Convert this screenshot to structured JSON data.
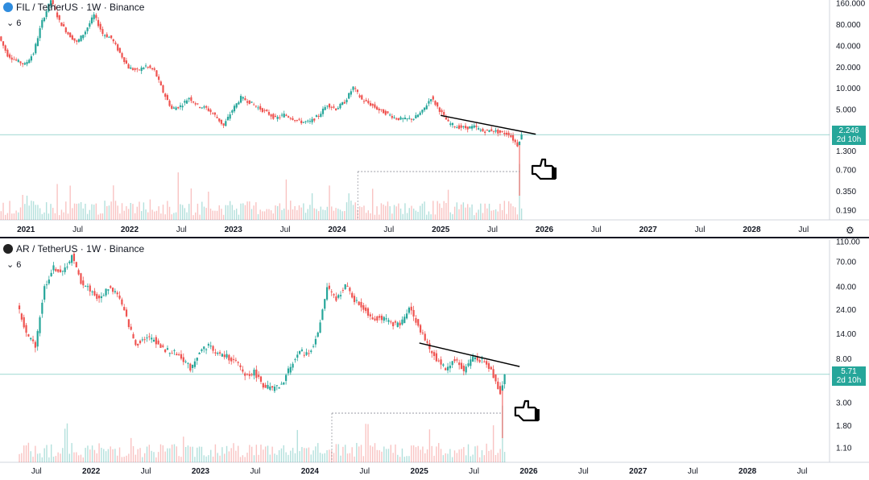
{
  "colors": {
    "up": "#26a69a",
    "down": "#ef5350",
    "price_line": "#26a69a",
    "grid": "#e0e3eb"
  },
  "chart_data": [
    {
      "type": "candlestick",
      "title": "FIL / TetherUS · 1W · Binance",
      "interval_label": "6",
      "logo_color": "#2f8cde",
      "y_scale": "log",
      "ylim": [
        0.14,
        180
      ],
      "y_ticks": [
        "160.000",
        "80.000",
        "40.000",
        "20.000",
        "10.000",
        "5.000",
        "2.500",
        "1.300",
        "0.700",
        "0.350",
        "0.190"
      ],
      "y_tick_values": [
        160,
        80,
        40,
        20,
        10,
        5,
        2.5,
        1.3,
        0.7,
        0.35,
        0.19
      ],
      "last_price": "2.246",
      "countdown": "2d 10h",
      "last_value": 2.246,
      "x_ticks": [
        "2021",
        "Jul",
        "2022",
        "Jul",
        "2023",
        "Jul",
        "2024",
        "Jul",
        "2025",
        "Jul",
        "2026",
        "Jul",
        "2027",
        "Jul",
        "2028",
        "Jul"
      ],
      "x_tick_dates": [
        "2021-01",
        "2021-07",
        "2022-01",
        "2022-07",
        "2023-01",
        "2023-07",
        "2024-01",
        "2024-07",
        "2025-01",
        "2025-07",
        "2026-01",
        "2026-07",
        "2027-01",
        "2027-07",
        "2028-01",
        "2028-07"
      ],
      "xlim": [
        "2020-10",
        "2028-10"
      ],
      "price_path": [
        [
          "2020-10",
          55
        ],
        [
          "2020-11",
          30
        ],
        [
          "2020-12",
          25
        ],
        [
          "2021-01",
          22
        ],
        [
          "2021-02",
          32
        ],
        [
          "2021-03",
          90
        ],
        [
          "2021-04",
          180
        ],
        [
          "2021-05",
          90
        ],
        [
          "2021-06",
          60
        ],
        [
          "2021-07",
          45
        ],
        [
          "2021-08",
          65
        ],
        [
          "2021-09",
          110
        ],
        [
          "2021-10",
          60
        ],
        [
          "2021-11",
          52
        ],
        [
          "2021-12",
          32
        ],
        [
          "2022-01",
          20
        ],
        [
          "2022-02",
          18
        ],
        [
          "2022-03",
          21
        ],
        [
          "2022-04",
          18
        ],
        [
          "2022-05",
          9
        ],
        [
          "2022-06",
          5.2
        ],
        [
          "2022-07",
          5.7
        ],
        [
          "2022-08",
          7.5
        ],
        [
          "2022-09",
          5.8
        ],
        [
          "2022-10",
          5.3
        ],
        [
          "2022-11",
          4.2
        ],
        [
          "2022-12",
          3.0
        ],
        [
          "2023-01",
          5.0
        ],
        [
          "2023-02",
          7.5
        ],
        [
          "2023-03",
          6.5
        ],
        [
          "2023-04",
          5.4
        ],
        [
          "2023-05",
          4.6
        ],
        [
          "2023-06",
          3.8
        ],
        [
          "2023-07",
          4.3
        ],
        [
          "2023-08",
          3.8
        ],
        [
          "2023-09",
          3.4
        ],
        [
          "2023-10",
          3.4
        ],
        [
          "2023-11",
          4.2
        ],
        [
          "2023-12",
          6.0
        ],
        [
          "2024-01",
          5.2
        ],
        [
          "2024-02",
          6.5
        ],
        [
          "2024-03",
          10.5
        ],
        [
          "2024-04",
          7.0
        ],
        [
          "2024-05",
          6.0
        ],
        [
          "2024-06",
          5.0
        ],
        [
          "2024-07",
          4.4
        ],
        [
          "2024-08",
          3.8
        ],
        [
          "2024-09",
          3.7
        ],
        [
          "2024-10",
          3.8
        ],
        [
          "2024-11",
          4.8
        ],
        [
          "2024-12",
          7.5
        ],
        [
          "2025-01",
          5.0
        ],
        [
          "2025-02",
          3.3
        ],
        [
          "2025-03",
          2.9
        ],
        [
          "2025-04",
          2.8
        ],
        [
          "2025-05",
          2.9
        ],
        [
          "2025-06",
          2.5
        ],
        [
          "2025-07",
          2.6
        ],
        [
          "2025-08",
          2.4
        ],
        [
          "2025-09",
          2.3
        ],
        [
          "2025-10",
          1.6
        ],
        [
          "2025-10b",
          2.246
        ]
      ],
      "trendline": [
        [
          "2025-01",
          4.2
        ],
        [
          "2025-12",
          2.28
        ]
      ],
      "volume_note": "volume bars with spike at 2025-10",
      "annotation": "hand pointer at 0.7 level"
    },
    {
      "type": "candlestick",
      "title": "AR / TetherUS · 1W · Binance",
      "interval_label": "6",
      "logo_color": "#222222",
      "y_scale": "log",
      "ylim": [
        0.8,
        115
      ],
      "y_ticks": [
        "110.00",
        "70.00",
        "40.00",
        "24.00",
        "14.00",
        "8.00",
        "5.00",
        "3.00",
        "1.80",
        "1.10"
      ],
      "y_tick_values": [
        110,
        70,
        40,
        24,
        14,
        8,
        5,
        3,
        1.8,
        1.1
      ],
      "last_price": "5.71",
      "countdown": "2d 10h",
      "last_value": 5.71,
      "x_ticks": [
        "Jul",
        "2022",
        "Jul",
        "2023",
        "Jul",
        "2024",
        "Jul",
        "2025",
        "Jul",
        "2026",
        "Jul",
        "2027",
        "Jul",
        "2028",
        "Jul"
      ],
      "x_tick_dates": [
        "2021-07",
        "2022-01",
        "2022-07",
        "2023-01",
        "2023-07",
        "2024-01",
        "2024-07",
        "2025-01",
        "2025-07",
        "2026-01",
        "2026-07",
        "2027-01",
        "2027-07",
        "2028-01",
        "2028-07"
      ],
      "xlim": [
        "2021-03",
        "2028-10"
      ],
      "price_path": [
        [
          "2021-05",
          28
        ],
        [
          "2021-06",
          14
        ],
        [
          "2021-07",
          11
        ],
        [
          "2021-08",
          40
        ],
        [
          "2021-09",
          62
        ],
        [
          "2021-10",
          55
        ],
        [
          "2021-11",
          80
        ],
        [
          "2021-12",
          45
        ],
        [
          "2022-01",
          38
        ],
        [
          "2022-02",
          30
        ],
        [
          "2022-03",
          40
        ],
        [
          "2022-04",
          35
        ],
        [
          "2022-05",
          20
        ],
        [
          "2022-06",
          11
        ],
        [
          "2022-07",
          13
        ],
        [
          "2022-08",
          12.5
        ],
        [
          "2022-09",
          10
        ],
        [
          "2022-10",
          9.5
        ],
        [
          "2022-11",
          8.5
        ],
        [
          "2022-12",
          6.5
        ],
        [
          "2023-01",
          9.5
        ],
        [
          "2023-02",
          11
        ],
        [
          "2023-03",
          9
        ],
        [
          "2023-04",
          8.5
        ],
        [
          "2023-05",
          7.5
        ],
        [
          "2023-06",
          5.6
        ],
        [
          "2023-07",
          6.0
        ],
        [
          "2023-08",
          4.5
        ],
        [
          "2023-09",
          4.1
        ],
        [
          "2023-10",
          4.4
        ],
        [
          "2023-11",
          7.0
        ],
        [
          "2023-12",
          9.5
        ],
        [
          "2024-01",
          9.0
        ],
        [
          "2024-02",
          14
        ],
        [
          "2024-03",
          40
        ],
        [
          "2024-04",
          30
        ],
        [
          "2024-05",
          42
        ],
        [
          "2024-06",
          30
        ],
        [
          "2024-07",
          25
        ],
        [
          "2024-08",
          20
        ],
        [
          "2024-09",
          20
        ],
        [
          "2024-10",
          18
        ],
        [
          "2024-11",
          17
        ],
        [
          "2024-12",
          26
        ],
        [
          "2025-01",
          17
        ],
        [
          "2025-02",
          11
        ],
        [
          "2025-03",
          8
        ],
        [
          "2025-04",
          6.5
        ],
        [
          "2025-05",
          8.0
        ],
        [
          "2025-06",
          6.2
        ],
        [
          "2025-07",
          8.5
        ],
        [
          "2025-08",
          7.8
        ],
        [
          "2025-09",
          6.2
        ],
        [
          "2025-10",
          3.8
        ],
        [
          "2025-10b",
          5.71
        ]
      ],
      "trendline": [
        [
          "2025-01",
          11.5
        ],
        [
          "2025-12",
          6.8
        ]
      ],
      "volume_note": "volume bars with spike at 2025-10",
      "annotation": "hand pointer at 1.8 level"
    }
  ]
}
